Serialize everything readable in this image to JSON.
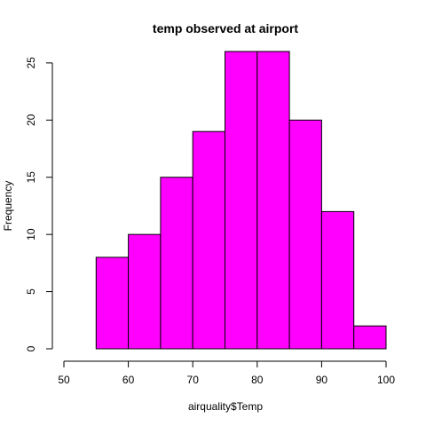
{
  "chart_data": {
    "type": "bar",
    "title": "temp observed at airport",
    "xlabel": "airquality$Temp",
    "ylabel": "Frequency",
    "bins": [
      {
        "start": 55,
        "end": 60,
        "count": 8
      },
      {
        "start": 60,
        "end": 65,
        "count": 10
      },
      {
        "start": 65,
        "end": 70,
        "count": 15
      },
      {
        "start": 70,
        "end": 75,
        "count": 19
      },
      {
        "start": 75,
        "end": 80,
        "count": 26
      },
      {
        "start": 80,
        "end": 85,
        "count": 26
      },
      {
        "start": 85,
        "end": 90,
        "count": 20
      },
      {
        "start": 90,
        "end": 95,
        "count": 12
      },
      {
        "start": 95,
        "end": 100,
        "count": 2
      }
    ],
    "xlim": [
      50,
      100
    ],
    "ylim": [
      0,
      26
    ],
    "xticks": [
      "50",
      "60",
      "70",
      "80",
      "90",
      "100"
    ],
    "yticks": [
      "0",
      "5",
      "10",
      "15",
      "20",
      "25"
    ],
    "bar_color": "#FF00FF",
    "grid": false
  }
}
